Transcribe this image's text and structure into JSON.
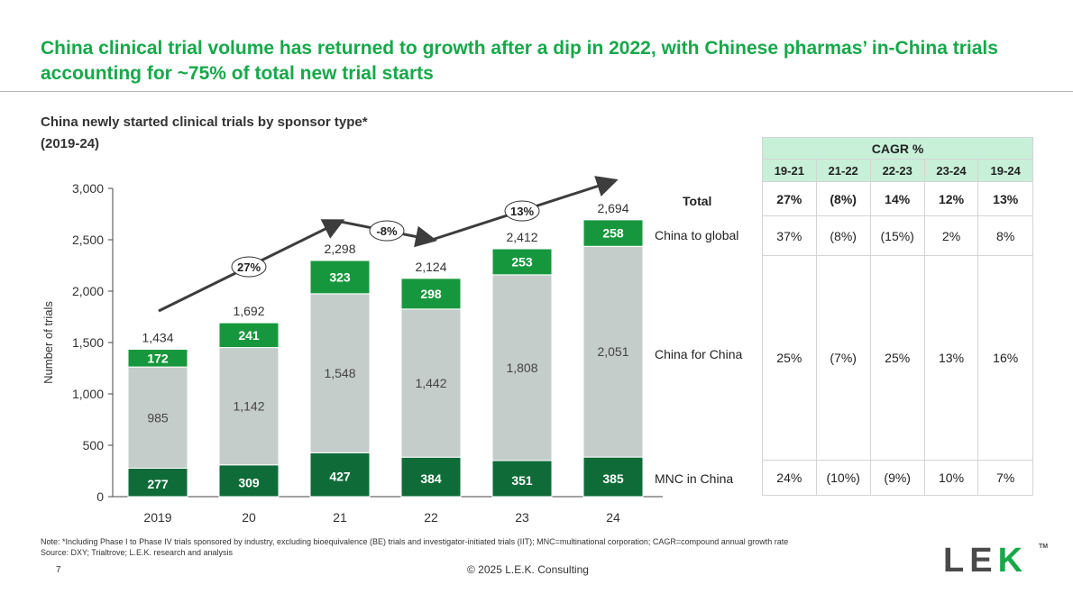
{
  "title": "China clinical trial volume has returned to growth after a dip in 2022, with Chinese pharmas’ in-China trials accounting for ~75% of total new trial starts",
  "subtitle_line1": "China newly started clinical trials by sponsor type*",
  "subtitle_line2": "(2019-24)",
  "chart_data": {
    "type": "bar",
    "stacked": true,
    "categories": [
      "2019",
      "20",
      "21",
      "22",
      "23",
      "24"
    ],
    "series": [
      {
        "name": "MNC in China",
        "values": [
          277,
          309,
          427,
          384,
          351,
          385
        ],
        "color": "#0f6b38"
      },
      {
        "name": "China for China",
        "values": [
          985,
          1142,
          1548,
          1442,
          1808,
          2051
        ],
        "color": "#c5cdcb"
      },
      {
        "name": "China to global",
        "values": [
          172,
          241,
          323,
          298,
          253,
          258
        ],
        "color": "#17973d"
      }
    ],
    "totals": [
      1434,
      1692,
      2298,
      2124,
      2412,
      2694
    ],
    "total_labels": [
      "1,434",
      "1,692",
      "2,298",
      "2,124",
      "2,412",
      "2,694"
    ],
    "ylabel": "Number of trials",
    "ylim": [
      0,
      3000
    ],
    "yticks": [
      0,
      500,
      1000,
      1500,
      2000,
      2500,
      3000
    ],
    "ytick_labels": [
      "0",
      "500",
      "1,000",
      "1,500",
      "2,000",
      "2,500",
      "3,000"
    ],
    "growth_annotations": [
      "27%",
      "-8%",
      "13%"
    ],
    "row_labels": [
      "Total",
      "China to global",
      "China for China",
      "MNC in China"
    ]
  },
  "cagr": {
    "header": "CAGR %",
    "years": [
      "19-21",
      "21-22",
      "22-23",
      "23-24",
      "19-24"
    ],
    "rows": [
      {
        "name": "Total",
        "values": [
          "27%",
          "(8%)",
          "14%",
          "12%",
          "13%"
        ]
      },
      {
        "name": "China to global",
        "values": [
          "37%",
          "(8%)",
          "(15%)",
          "2%",
          "8%"
        ]
      },
      {
        "name": "China for China",
        "values": [
          "25%",
          "(7%)",
          "25%",
          "13%",
          "16%"
        ]
      },
      {
        "name": "MNC in China",
        "values": [
          "24%",
          "(10%)",
          "(9%)",
          "10%",
          "7%"
        ]
      }
    ]
  },
  "footer": {
    "note": "Note: *Including Phase I to Phase IV trials sponsored by industry, excluding bioequivalence (BE) trials and investigator-initiated trials (IIT); MNC=multinational corporation; CAGR=compound annual growth rate",
    "source": "Source: DXY; Trialtrove; L.E.K. research and analysis",
    "page": "7",
    "copyright": "© 2025 L.E.K. Consulting"
  },
  "logo": {
    "left": "LE",
    "right": "K",
    "tm": "TM"
  },
  "colors": {
    "brand_green": "#17a84a",
    "dark_green": "#0f6b38",
    "mid_green": "#17973d",
    "grey": "#c5cdcb",
    "table_header": "#c8f0d8"
  }
}
